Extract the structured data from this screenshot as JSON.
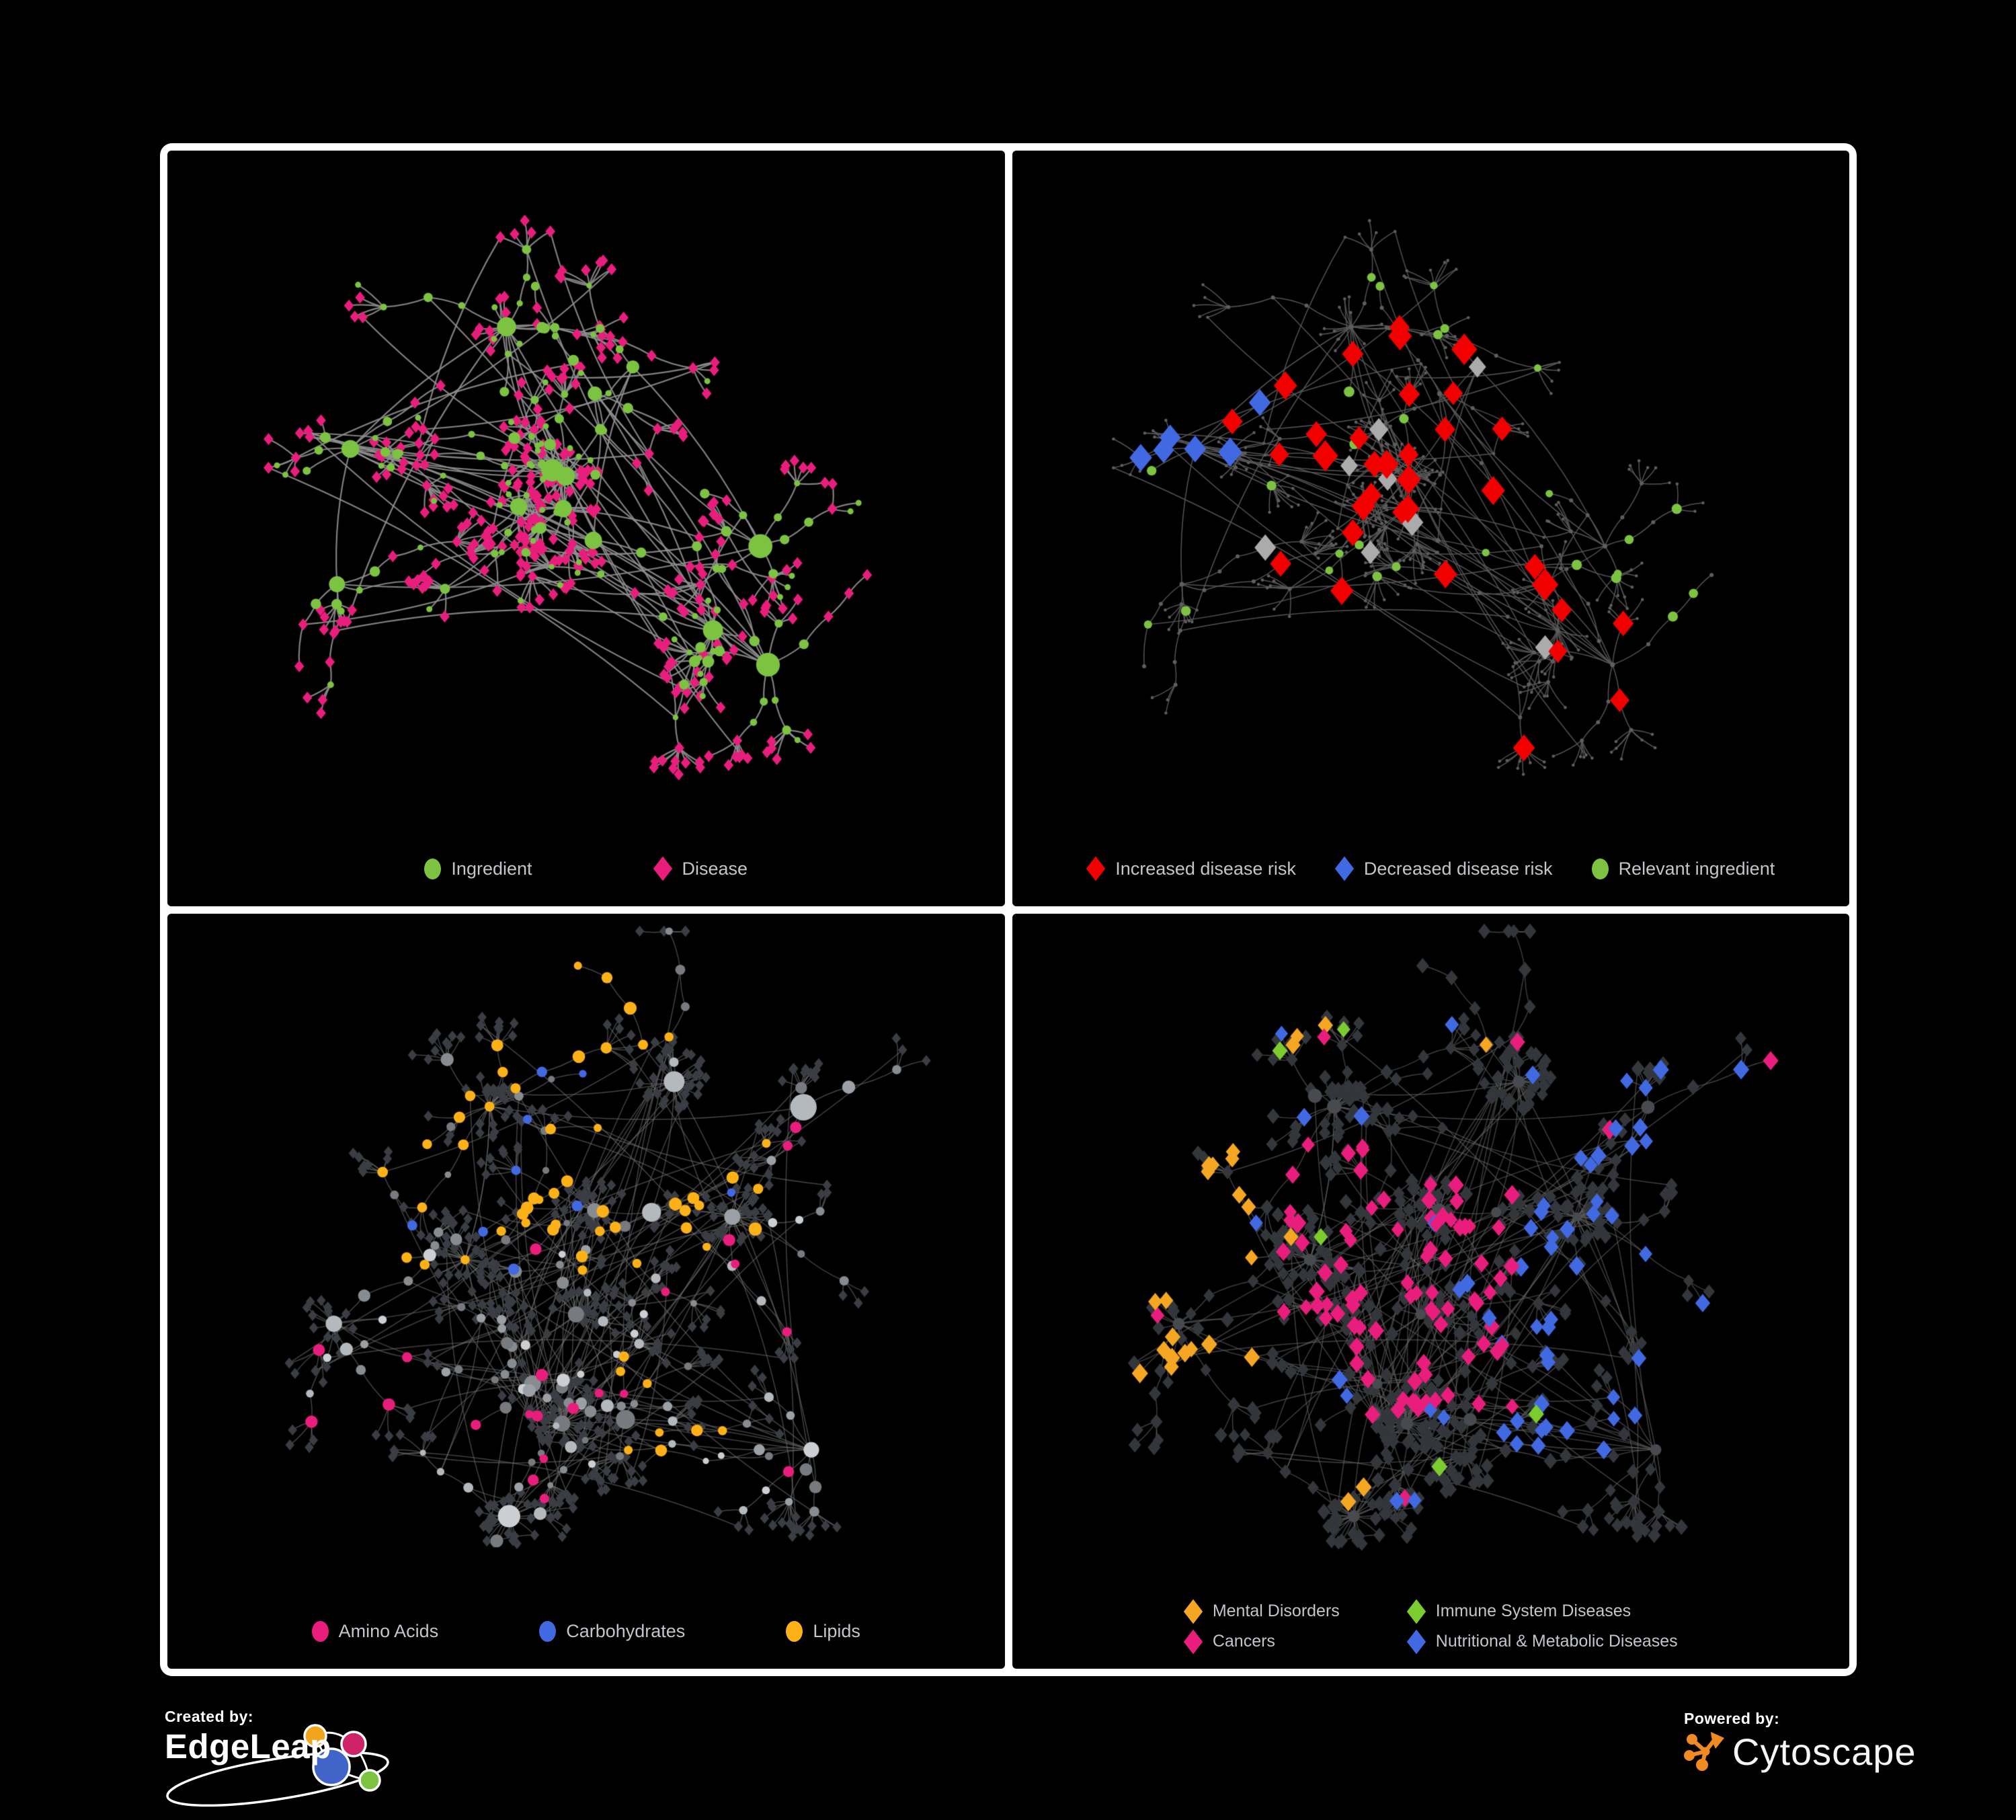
{
  "page": {
    "background": "#000000",
    "frame_color": "#ffffff"
  },
  "footer": {
    "created_by_label": "Created by:",
    "created_by_name": "EdgeLeap",
    "powered_by_label": "Powered by:",
    "powered_by_name": "Cytoscape",
    "edgeleap_logo_colors": {
      "orange": "#F2A51C",
      "pink": "#CE2368",
      "blue": "#4064C8",
      "green": "#7CC342"
    },
    "cytoscape_orange": "#EF8B22"
  },
  "panels": [
    {
      "id": "ingredient-disease",
      "style": "ingredient_disease",
      "legend": [
        {
          "label": "Ingredient",
          "shape": "circle",
          "color": "#7CC342"
        },
        {
          "label": "Disease",
          "shape": "diamond",
          "color": "#E91E7C"
        }
      ]
    },
    {
      "id": "disease-risk",
      "style": "risk",
      "legend": [
        {
          "label": "Increased disease risk",
          "shape": "diamond",
          "color": "#F20000"
        },
        {
          "label": "Decreased disease risk",
          "shape": "diamond",
          "color": "#4169E1"
        },
        {
          "label": "Relevant ingredient",
          "shape": "circle",
          "color": "#7CC342"
        }
      ]
    },
    {
      "id": "nutrients",
      "style": "nutrients",
      "legend": [
        {
          "label": "Amino Acids",
          "shape": "circle",
          "color": "#E91E7C"
        },
        {
          "label": "Carbohydrates",
          "shape": "circle",
          "color": "#4169E1"
        },
        {
          "label": "Lipids",
          "shape": "circle",
          "color": "#FBB117"
        }
      ]
    },
    {
      "id": "disease-classes",
      "style": "classes",
      "legend": [
        {
          "label": "Mental Disorders",
          "shape": "diamond",
          "color": "#F5A623"
        },
        {
          "label": "Immune System Diseases",
          "shape": "diamond",
          "color": "#7CCB2F"
        },
        {
          "label": "Cancers",
          "shape": "diamond",
          "color": "#E91E7C"
        },
        {
          "label": "Nutritional & Metabolic Diseases",
          "shape": "diamond",
          "color": "#4169E1"
        }
      ]
    }
  ],
  "network_style": {
    "ingredient_disease": {
      "edge": "#8F8F8F",
      "edge_w": 2.2,
      "edge_a": 0.9,
      "green": "#7CC342",
      "pink": "#E91E7C"
    },
    "risk": {
      "edge": "#575757",
      "edge_w": 1.5,
      "edge_a": 0.95,
      "base": "#5E5E5E",
      "red": "#F20000",
      "blue": "#4169E1",
      "gray": "#ABABAB",
      "green": "#7CC342"
    },
    "nutrients": {
      "edge": "#6E6E6E",
      "edge_w": 1.5,
      "edge_a": 0.6,
      "grays": [
        "#878C91",
        "#9AA0A5",
        "#B4B9BE",
        "#777B80",
        "#CBCFD3"
      ],
      "leaf": "#3A3E44",
      "yellow": "#FBB117",
      "pink": "#E91E7C",
      "blue": "#4169E1"
    },
    "classes": {
      "edge": "#646464",
      "edge_w": 1.4,
      "edge_a": 0.65,
      "hub": "#474B50",
      "dark": "#33373C",
      "orange": "#F5A623",
      "pink": "#E91E7C",
      "blue": "#4169E1",
      "green": "#7CCB2F"
    }
  }
}
